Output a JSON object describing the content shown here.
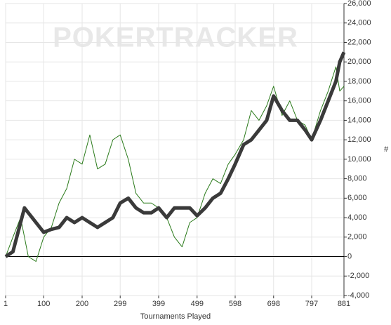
{
  "chart_data": {
    "type": "line",
    "watermark": "POKERTRACKER",
    "xlabel": "Tournaments Played",
    "ylabel": "#",
    "x": [
      1,
      20,
      40,
      50,
      60,
      80,
      100,
      120,
      140,
      160,
      180,
      200,
      220,
      240,
      260,
      280,
      299,
      320,
      340,
      360,
      380,
      399,
      420,
      440,
      460,
      480,
      499,
      520,
      540,
      560,
      580,
      598,
      620,
      640,
      660,
      680,
      698,
      720,
      740,
      760,
      780,
      797,
      820,
      840,
      860,
      870,
      881
    ],
    "series": [
      {
        "color": "#2a7a1a",
        "width": 1,
        "values": [
          0,
          2000,
          4000,
          2000,
          0,
          -500,
          2000,
          3000,
          5500,
          7000,
          10000,
          9500,
          12500,
          9000,
          9500,
          12000,
          12500,
          10000,
          6500,
          5500,
          5500,
          5000,
          4000,
          2000,
          1000,
          3500,
          4000,
          6500,
          8000,
          7500,
          9500,
          10500,
          12000,
          15000,
          14000,
          15500,
          17500,
          14500,
          16000,
          14000,
          13500,
          12000,
          15000,
          17000,
          19500,
          17000,
          17500
        ]
      },
      {
        "color": "#3a3a3a",
        "width": 5,
        "values": [
          0,
          500,
          3500,
          5000,
          4500,
          3500,
          2500,
          2800,
          3000,
          4000,
          3500,
          4000,
          3500,
          3000,
          3500,
          4000,
          5500,
          6000,
          5000,
          4500,
          4500,
          5000,
          4000,
          5000,
          5000,
          5000,
          4200,
          5000,
          6000,
          6500,
          8000,
          9500,
          11500,
          12000,
          13000,
          14000,
          16500,
          15000,
          14000,
          14000,
          13000,
          12000,
          14000,
          16000,
          18000,
          20000,
          21000
        ]
      }
    ],
    "xlim": [
      1,
      881
    ],
    "xticks": [
      1,
      100,
      200,
      299,
      399,
      499,
      598,
      698,
      797,
      881
    ],
    "ylim": [
      -4000,
      26000
    ],
    "yticks": [
      {
        "value": -4000,
        "label": "-4,000"
      },
      {
        "value": -2000,
        "label": "-2,000"
      },
      0,
      {
        "value": 2000,
        "label": "2,000"
      },
      {
        "value": 4000,
        "label": "4,000"
      },
      {
        "value": 6000,
        "label": "6,000"
      },
      {
        "value": 8000,
        "label": "8,000"
      },
      {
        "value": 10000,
        "label": "10,000"
      },
      {
        "value": 12000,
        "label": "12,000"
      },
      {
        "value": 14000,
        "label": "14,000"
      },
      {
        "value": 16000,
        "label": "16,000"
      },
      {
        "value": 18000,
        "label": "18,000"
      },
      {
        "value": 20000,
        "label": "20,000"
      },
      {
        "value": 22000,
        "label": "22,000"
      },
      {
        "value": 24000,
        "label": "24,000"
      },
      {
        "value": 26000,
        "label": "26,000"
      }
    ],
    "grid": true,
    "zero_line": true
  }
}
